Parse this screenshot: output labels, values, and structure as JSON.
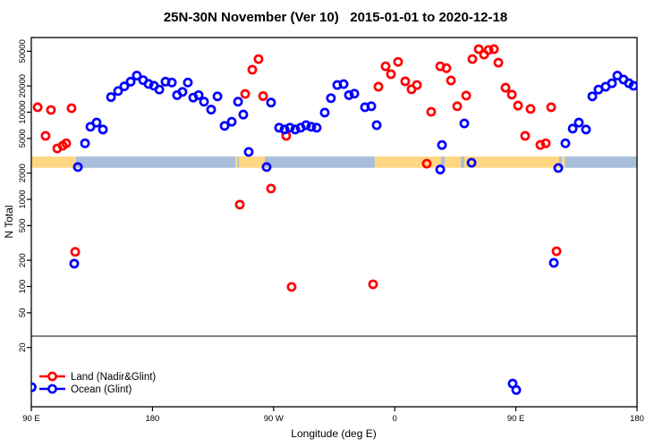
{
  "chart_data": {
    "type": "scatter",
    "title": "25N-30N November (Ver 10)   2015-01-01 to 2020-12-18",
    "xlabel": "Longitude (deg E)",
    "ylabel": "N Total",
    "y_scale": "log",
    "ylim": [
      4,
      72000
    ],
    "grid": "off",
    "legend_position": "bottom-left",
    "y_ticks": [
      20,
      50,
      100,
      200,
      500,
      1000,
      2000,
      5000,
      10000,
      20000,
      50000
    ],
    "x_span_deg": 450,
    "x_ticks": [
      {
        "pos": 0,
        "label": "90 E"
      },
      {
        "pos": 90,
        "label": "180"
      },
      {
        "pos": 180,
        "label": "90 W"
      },
      {
        "pos": 270,
        "label": "0"
      },
      {
        "pos": 360,
        "label": "90 E"
      },
      {
        "pos": 450,
        "label": "180"
      }
    ],
    "threshold_line_n": 27,
    "surface_band": {
      "n_range": [
        2300,
        3100
      ],
      "colors": {
        "land": "#ffd782",
        "ocean": "#a9bedb"
      },
      "segments": [
        {
          "from": 0,
          "to": 33.2,
          "surface": "land"
        },
        {
          "from": 33.2,
          "to": 151.6,
          "surface": "ocean"
        },
        {
          "from": 151.6,
          "to": 153.2,
          "surface": "land"
        },
        {
          "from": 153.2,
          "to": 154.2,
          "surface": "ocean"
        },
        {
          "from": 154.2,
          "to": 173.5,
          "surface": "land"
        },
        {
          "from": 173.5,
          "to": 255.2,
          "surface": "ocean"
        },
        {
          "from": 255.2,
          "to": 304.4,
          "surface": "land"
        },
        {
          "from": 304.4,
          "to": 307.1,
          "surface": "ocean"
        },
        {
          "from": 307.1,
          "to": 319.1,
          "surface": "land"
        },
        {
          "from": 319.1,
          "to": 321.7,
          "surface": "ocean"
        },
        {
          "from": 321.7,
          "to": 392.2,
          "surface": "land"
        },
        {
          "from": 392.2,
          "to": 394.2,
          "surface": "ocean"
        },
        {
          "from": 394.2,
          "to": 396.4,
          "surface": "land"
        },
        {
          "from": 396.4,
          "to": 450,
          "surface": "ocean"
        }
      ]
    },
    "legend": [
      {
        "id": "land",
        "label": "Land (Nadir&Glint)",
        "color": "#ff0000"
      },
      {
        "id": "ocean",
        "label": "Ocean (Glint)",
        "color": "#0000ff"
      }
    ],
    "series": [
      {
        "id": "land",
        "name": "Land (Nadir&Glint)",
        "color": "#ff0000",
        "points": [
          [
            4.7,
            11400
          ],
          [
            10.6,
            5350
          ],
          [
            14.6,
            10600
          ],
          [
            19.3,
            3840
          ],
          [
            23.3,
            4120
          ],
          [
            25.9,
            4400
          ],
          [
            29.9,
            11100
          ],
          [
            32.6,
            250
          ],
          [
            154.9,
            870
          ],
          [
            158.9,
            16200
          ],
          [
            164.2,
            30700
          ],
          [
            168.8,
            40700
          ],
          [
            172.2,
            15300
          ],
          [
            178.1,
            1330
          ],
          [
            189.4,
            5350
          ],
          [
            193.4,
            99
          ],
          [
            253.9,
            106
          ],
          [
            257.9,
            19600
          ],
          [
            263.2,
            33600
          ],
          [
            267.2,
            27300
          ],
          [
            272.5,
            37800
          ],
          [
            277.8,
            22600
          ],
          [
            282.5,
            18300
          ],
          [
            286.5,
            20500
          ],
          [
            293.8,
            2570
          ],
          [
            297.1,
            10100
          ],
          [
            303.8,
            33600
          ],
          [
            308.4,
            32000
          ],
          [
            311.8,
            23100
          ],
          [
            316.4,
            11700
          ],
          [
            323.1,
            15500
          ],
          [
            327.7,
            40700
          ],
          [
            332.4,
            52900
          ],
          [
            336.4,
            45800
          ],
          [
            339.7,
            51700
          ],
          [
            343.7,
            52900
          ],
          [
            347.0,
            37000
          ],
          [
            352.3,
            19100
          ],
          [
            357.0,
            15900
          ],
          [
            361.6,
            11900
          ],
          [
            366.9,
            5350
          ],
          [
            370.9,
            10900
          ],
          [
            378.2,
            4210
          ],
          [
            382.2,
            4400
          ],
          [
            386.2,
            11400
          ],
          [
            390.2,
            254
          ]
        ]
      },
      {
        "id": "ocean",
        "name": "Ocean (Glint)",
        "color": "#0000ff",
        "points": [
          [
            0.3,
            7
          ],
          [
            31.9,
            183
          ],
          [
            34.6,
            2350
          ],
          [
            39.9,
            4400
          ],
          [
            43.9,
            6800
          ],
          [
            48.5,
            7600
          ],
          [
            53.2,
            6330
          ],
          [
            59.2,
            14900
          ],
          [
            64.5,
            17500
          ],
          [
            69.1,
            19800
          ],
          [
            73.8,
            22400
          ],
          [
            78.4,
            26300
          ],
          [
            83.1,
            23300
          ],
          [
            87.1,
            21100
          ],
          [
            91.1,
            20100
          ],
          [
            95.1,
            18200
          ],
          [
            99.7,
            22400
          ],
          [
            104.4,
            21900
          ],
          [
            108.3,
            15700
          ],
          [
            112.3,
            17100
          ],
          [
            116.3,
            21900
          ],
          [
            120.3,
            14700
          ],
          [
            124.3,
            15700
          ],
          [
            128.3,
            13200
          ],
          [
            133.6,
            10700
          ],
          [
            138.3,
            15200
          ],
          [
            143.6,
            6970
          ],
          [
            148.9,
            7770
          ],
          [
            153.6,
            13200
          ],
          [
            157.5,
            9400
          ],
          [
            161.5,
            3500
          ],
          [
            174.8,
            2350
          ],
          [
            178.1,
            12900
          ],
          [
            184.1,
            6640
          ],
          [
            188.1,
            6330
          ],
          [
            192.1,
            6640
          ],
          [
            196.1,
            6330
          ],
          [
            200.1,
            6640
          ],
          [
            204.1,
            7100
          ],
          [
            208.0,
            6800
          ],
          [
            212.0,
            6640
          ],
          [
            218.0,
            9900
          ],
          [
            222.6,
            14500
          ],
          [
            227.3,
            20500
          ],
          [
            232.0,
            21000
          ],
          [
            236.0,
            15700
          ],
          [
            240.0,
            16300
          ],
          [
            247.9,
            11400
          ],
          [
            252.6,
            11700
          ],
          [
            256.6,
            7100
          ],
          [
            303.8,
            2200
          ],
          [
            305.1,
            4200
          ],
          [
            321.7,
            7430
          ],
          [
            327.1,
            2630
          ],
          [
            357.6,
            7.7
          ],
          [
            360.3,
            6.5
          ],
          [
            388.2,
            187
          ],
          [
            391.5,
            2290
          ],
          [
            396.8,
            4400
          ],
          [
            402.2,
            6480
          ],
          [
            406.8,
            7600
          ],
          [
            412.1,
            6330
          ],
          [
            416.8,
            15200
          ],
          [
            421.4,
            18200
          ],
          [
            426.7,
            19600
          ],
          [
            431.4,
            21500
          ],
          [
            435.4,
            26300
          ],
          [
            440.0,
            23700
          ],
          [
            444.0,
            21500
          ],
          [
            447.4,
            20100
          ]
        ]
      }
    ]
  }
}
